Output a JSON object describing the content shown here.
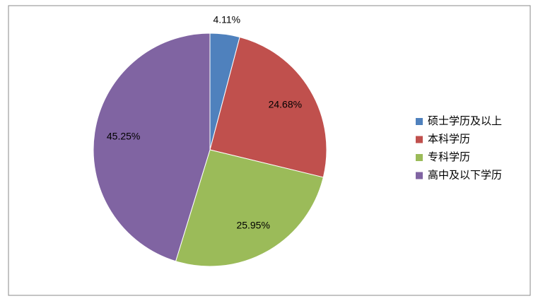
{
  "chart_data": {
    "type": "pie",
    "categories": [
      "硕士学历及以上",
      "本科学历",
      "专科学历",
      "高中及以下学历"
    ],
    "values": [
      4.11,
      24.68,
      25.95,
      45.25
    ],
    "value_labels": [
      "4.11%",
      "24.68%",
      "25.95%",
      "45.25%"
    ],
    "colors": [
      "#4f81bd",
      "#c0504d",
      "#9bbb59",
      "#8064a2"
    ],
    "legend": "right"
  }
}
